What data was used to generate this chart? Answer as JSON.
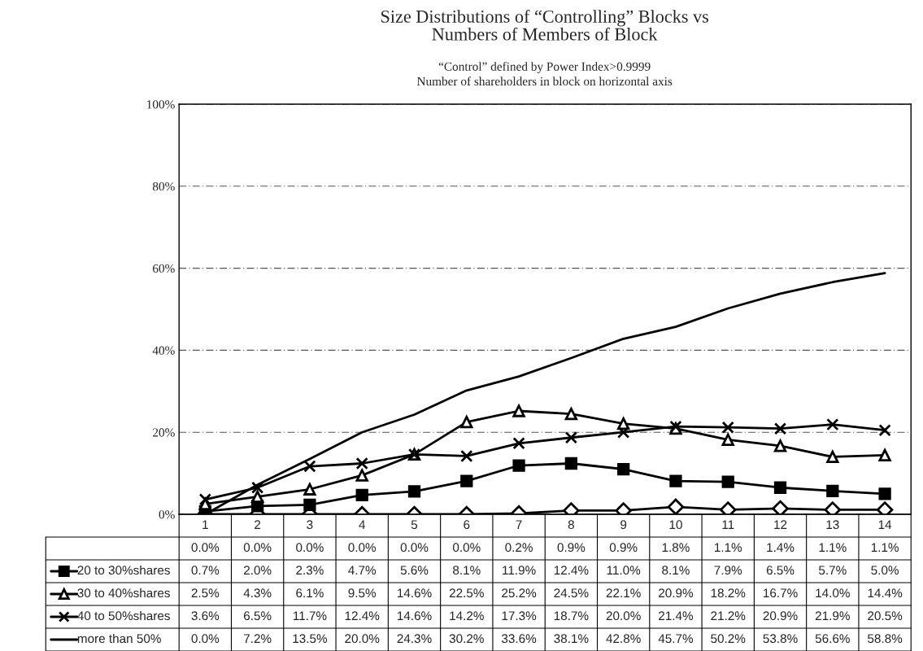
{
  "chart_data": {
    "type": "line",
    "title": "Size Distributions of “Controlling” Blocks vs\nNumbers of Members of Block",
    "subtitle": "“Control” defined by Power Index>0.9999\nNumber of shareholders in block on horizontal axis",
    "categories": [
      "1",
      "2",
      "3",
      "4",
      "5",
      "6",
      "7",
      "8",
      "9",
      "10",
      "11",
      "12",
      "13",
      "14"
    ],
    "ylim": [
      0,
      100
    ],
    "yticks": [
      {
        "value": 0,
        "label": "0%"
      },
      {
        "value": 20,
        "label": "20%"
      },
      {
        "value": 40,
        "label": "40%"
      },
      {
        "value": 60,
        "label": "60%"
      },
      {
        "value": 80,
        "label": "80%"
      },
      {
        "value": 100,
        "label": "100%"
      }
    ],
    "tick_labels": "y",
    "grid": "y",
    "legend": "bottom left",
    "series": [
      {
        "color": "#000000",
        "marker": "diamond",
        "values": [
          0.0,
          0.0,
          0.0,
          0.0,
          0.0,
          0.0,
          0.2,
          0.9,
          0.9,
          1.8,
          1.1,
          1.4,
          1.1,
          1.1
        ],
        "value_labels": [
          "0.0%",
          "0.0%",
          "0.0%",
          "0.0%",
          "0.0%",
          "0.0%",
          "0.2%",
          "0.9%",
          "0.9%",
          "1.8%",
          "1.1%",
          "1.4%",
          "1.1%",
          "1.1%"
        ]
      },
      {
        "name": "20 to 30%shares",
        "color": "#000000",
        "marker": "square",
        "values": [
          0.7,
          2.0,
          2.3,
          4.7,
          5.6,
          8.1,
          11.9,
          12.4,
          11.0,
          8.1,
          7.9,
          6.5,
          5.7,
          5.0
        ],
        "value_labels": [
          "0.7%",
          "2.0%",
          "2.3%",
          "4.7%",
          "5.6%",
          "8.1%",
          "11.9%",
          "12.4%",
          "11.0%",
          "8.1%",
          "7.9%",
          "6.5%",
          "5.7%",
          "5.0%"
        ]
      },
      {
        "name": "30 to 40%shares",
        "color": "#000000",
        "marker": "triangle",
        "values": [
          2.5,
          4.3,
          6.1,
          9.5,
          14.6,
          22.5,
          25.2,
          24.5,
          22.1,
          20.9,
          18.2,
          16.7,
          14.0,
          14.4
        ],
        "value_labels": [
          "2.5%",
          "4.3%",
          "6.1%",
          "9.5%",
          "14.6%",
          "22.5%",
          "25.2%",
          "24.5%",
          "22.1%",
          "20.9%",
          "18.2%",
          "16.7%",
          "14.0%",
          "14.4%"
        ]
      },
      {
        "name": "40 to 50%shares",
        "color": "#000000",
        "marker": "cross",
        "values": [
          3.6,
          6.5,
          11.7,
          12.4,
          14.6,
          14.2,
          17.3,
          18.7,
          20.0,
          21.4,
          21.2,
          20.9,
          21.9,
          20.5
        ],
        "value_labels": [
          "3.6%",
          "6.5%",
          "11.7%",
          "12.4%",
          "14.6%",
          "14.2%",
          "17.3%",
          "18.7%",
          "20.0%",
          "21.4%",
          "21.2%",
          "20.9%",
          "21.9%",
          "20.5%"
        ]
      },
      {
        "name": "more than 50%",
        "color": "#000000",
        "marker": "none",
        "values": [
          0.0,
          7.2,
          13.5,
          20.0,
          24.3,
          30.2,
          33.6,
          38.1,
          42.8,
          45.7,
          50.2,
          53.8,
          56.6,
          58.8
        ],
        "value_labels": [
          "0.0%",
          "7.2%",
          "13.5%",
          "20.0%",
          "24.3%",
          "30.2%",
          "33.6%",
          "38.1%",
          "42.8%",
          "45.7%",
          "50.2%",
          "53.8%",
          "56.6%",
          "58.8%"
        ]
      }
    ]
  }
}
